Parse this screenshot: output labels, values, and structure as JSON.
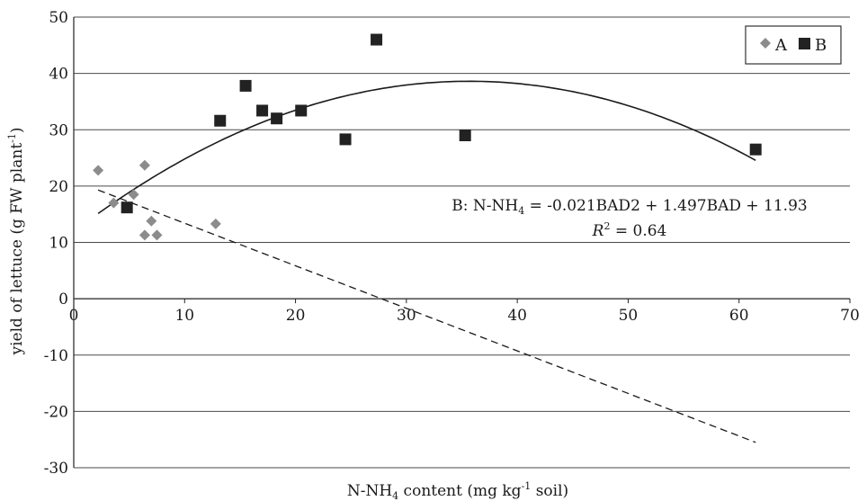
{
  "chart_data": {
    "type": "scatter",
    "xlim": [
      0,
      70
    ],
    "ylim": [
      -30,
      50
    ],
    "x_ticks": [
      0,
      10,
      20,
      30,
      40,
      50,
      60,
      70
    ],
    "y_ticks": [
      -30,
      -20,
      -10,
      0,
      10,
      20,
      30,
      40,
      50
    ],
    "grid": "horizontal",
    "legend_position": "top-right",
    "xlabel": {
      "prefix": "N-NH",
      "sub": "4",
      "mid": " content (mg kg",
      "sup": "-1",
      "suffix": " soil)"
    },
    "ylabel": {
      "prefix": "yield of lettuce (g FW plant",
      "sup": "-1",
      "suffix": ")"
    },
    "series": [
      {
        "name": "A",
        "marker": "diamond",
        "color": "#8c8c8c",
        "points": [
          [
            2.2,
            22.8
          ],
          [
            3.6,
            17.0
          ],
          [
            5.4,
            18.5
          ],
          [
            6.4,
            23.7
          ],
          [
            6.4,
            11.3
          ],
          [
            7.0,
            13.8
          ],
          [
            7.5,
            11.3
          ],
          [
            12.8,
            13.3
          ]
        ],
        "trendline": {
          "type": "linear",
          "style": "dashed",
          "from": [
            2.2,
            19.3
          ],
          "to": [
            61.5,
            -25.5
          ]
        }
      },
      {
        "name": "B",
        "marker": "square",
        "color": "#222222",
        "points": [
          [
            4.8,
            16.2
          ],
          [
            13.2,
            31.6
          ],
          [
            15.5,
            37.8
          ],
          [
            17.0,
            33.4
          ],
          [
            18.3,
            32.0
          ],
          [
            20.5,
            33.4
          ],
          [
            24.5,
            28.3
          ],
          [
            27.3,
            46.0
          ],
          [
            35.3,
            29.0
          ],
          [
            61.5,
            26.5
          ]
        ],
        "trendline": {
          "type": "quadratic",
          "style": "solid",
          "coefficients": [
            -0.021,
            1.497,
            11.93
          ],
          "x_from": 2.2,
          "x_to": 61.5
        }
      }
    ],
    "annotations": {
      "equation": {
        "before": "B: N-NH",
        "sub": "4",
        "after": " = -0.021BAD2 + 1.497BAD + 11.93"
      },
      "r2": {
        "r": "R",
        "sup": "2",
        "after": " = 0.64"
      }
    }
  }
}
